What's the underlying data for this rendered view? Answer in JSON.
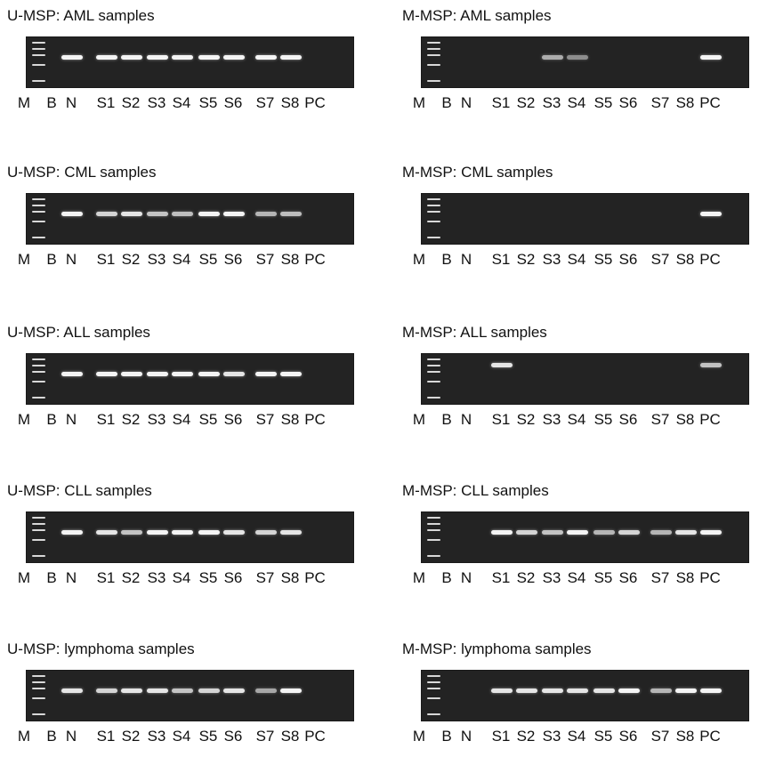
{
  "lanes": [
    "M",
    "B",
    "N",
    "S1",
    "S2",
    "S3",
    "S4",
    "S5",
    "S6",
    "S7",
    "S8",
    "PC"
  ],
  "panels": [
    {
      "title": "U-MSP: AML samples",
      "bands": [
        0,
        0,
        1,
        1,
        1,
        1,
        1,
        1,
        1,
        1,
        1,
        0
      ],
      "band_row": "mid"
    },
    {
      "title": "M-MSP: AML samples",
      "bands": [
        0,
        0,
        0,
        0,
        0,
        0.55,
        0.35,
        0,
        0,
        0,
        0,
        1
      ],
      "band_row": "mid"
    },
    {
      "title": "U-MSP: CML samples",
      "bands": [
        0,
        0,
        1,
        0.8,
        0.9,
        0.7,
        0.65,
        1,
        1,
        0.6,
        0.65,
        0
      ],
      "band_row": "mid"
    },
    {
      "title": "M-MSP: CML samples",
      "bands": [
        0,
        0,
        0,
        0,
        0,
        0,
        0,
        0,
        0,
        0,
        0,
        1
      ],
      "band_row": "mid"
    },
    {
      "title": "U-MSP: ALL samples",
      "bands": [
        0,
        0,
        1,
        1,
        1,
        1,
        1,
        1,
        0.9,
        1,
        1,
        0
      ],
      "band_row": "mid"
    },
    {
      "title": "M-MSP: ALL samples",
      "bands": [
        0,
        0,
        0,
        0.9,
        0,
        0,
        0,
        0,
        0,
        0,
        0,
        0.7
      ],
      "band_row": "high"
    },
    {
      "title": "U-MSP: CLL samples",
      "bands": [
        0,
        0,
        1,
        0.9,
        0.7,
        1,
        1,
        1,
        0.9,
        0.8,
        0.9,
        0
      ],
      "band_row": "mid"
    },
    {
      "title": "M-MSP: CLL samples",
      "bands": [
        0,
        0,
        0,
        1,
        0.8,
        0.7,
        1,
        0.6,
        0.8,
        0.6,
        0.9,
        1
      ],
      "band_row": "mid"
    },
    {
      "title": "U-MSP: lymphoma samples",
      "bands": [
        0,
        0,
        0.9,
        0.8,
        0.9,
        0.9,
        0.7,
        0.8,
        0.9,
        0.5,
        1,
        0
      ],
      "band_row": "mid"
    },
    {
      "title": "M-MSP: lymphoma samples",
      "bands": [
        0,
        0,
        0,
        0.9,
        0.9,
        0.9,
        0.9,
        0.9,
        1,
        0.6,
        1,
        1
      ],
      "band_row": "mid"
    }
  ]
}
